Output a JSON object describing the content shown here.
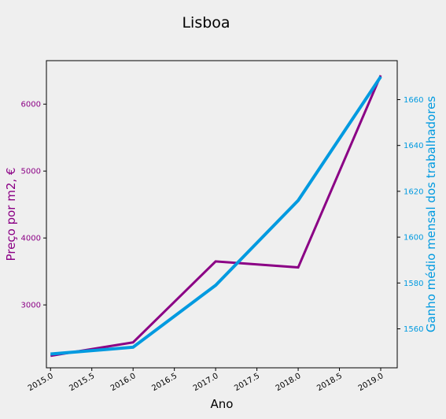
{
  "chart_data": {
    "type": "line",
    "title": "Lisboa",
    "xlabel": "Ano",
    "ylabel_left": "Preço por m2, €",
    "ylabel_right": "Ganho médio mensal dos trabalhadores",
    "x": [
      2015,
      2016,
      2017,
      2018,
      2019
    ],
    "xlim": [
      2014.95,
      2019.2
    ],
    "x_ticks": [
      2015.0,
      2015.5,
      2016.0,
      2016.5,
      2017.0,
      2017.5,
      2018.0,
      2018.5,
      2019.0
    ],
    "x_tick_labels": [
      "2015.0",
      "2015.5",
      "2016.0",
      "2016.5",
      "2017.0",
      "2017.5",
      "2018.0",
      "2018.5",
      "2019.0"
    ],
    "grid": false,
    "series": [
      {
        "axis": "left",
        "color": "#8b0085",
        "values": [
          2240,
          2440,
          3650,
          3560,
          6430
        ],
        "ylim": [
          2060,
          6650
        ],
        "ticks": [
          3000,
          4000,
          5000,
          6000
        ],
        "tick_labels": [
          "3000",
          "4000",
          "5000",
          "6000"
        ]
      },
      {
        "axis": "right",
        "color": "#009ae0",
        "values": [
          1549,
          1552,
          1579,
          1616,
          1670
        ],
        "ylim": [
          1543,
          1677
        ],
        "ticks": [
          1560,
          1580,
          1600,
          1620,
          1640,
          1660
        ],
        "tick_labels": [
          "1560",
          "1580",
          "1600",
          "1620",
          "1640",
          "1660"
        ]
      }
    ]
  }
}
